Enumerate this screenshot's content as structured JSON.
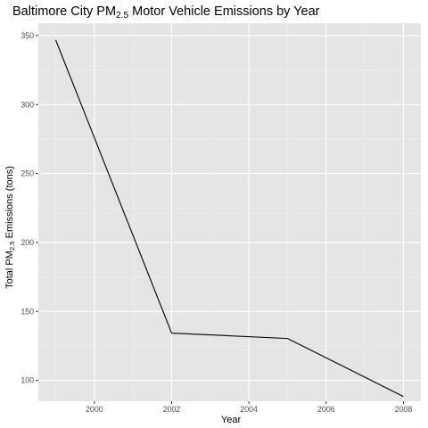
{
  "chart_data": {
    "type": "line",
    "title": {
      "prefix": "Baltimore City PM",
      "subscript": "2.5",
      "suffix": " Motor Vehicle Emissions by Year"
    },
    "xlabel": "Year",
    "ylabel": {
      "prefix": "Total PM",
      "subscript": "2.5",
      "suffix": " Emissions (tons)"
    },
    "x": [
      1999,
      2002,
      2005,
      2008
    ],
    "y": [
      346.8,
      134.3,
      130.4,
      88.3
    ],
    "xlim": [
      1998.55,
      2008.45
    ],
    "ylim": [
      84.9,
      359.0
    ],
    "xticks": [
      2000,
      2002,
      2004,
      2006,
      2008
    ],
    "yticks": [
      100,
      150,
      200,
      250,
      300,
      350
    ],
    "xtick_labels": [
      "2000",
      "2002",
      "2004",
      "2006",
      "2008"
    ],
    "ytick_labels": [
      "100",
      "150",
      "200",
      "250",
      "300",
      "350"
    ],
    "x_minor": [
      1999,
      2001,
      2003,
      2005,
      2007
    ],
    "y_minor": [
      125,
      175,
      225,
      275,
      325
    ],
    "grid": true,
    "legend": "none",
    "colors": {
      "panel": "#e5e5e5",
      "grid_major": "#ffffff",
      "grid_minor": "#f2f2f2",
      "line": "#000000",
      "tick": "#333333"
    }
  }
}
